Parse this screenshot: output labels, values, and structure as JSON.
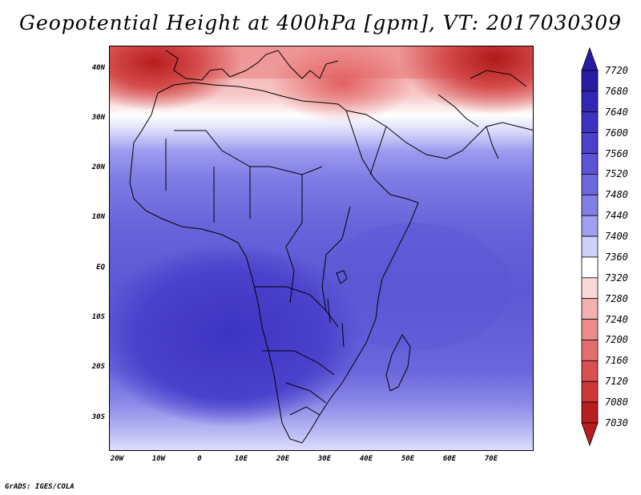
{
  "title": "Geopotential Height at 400hPa [gpm], VT: 2017030309",
  "footer": "GrADS: IGES/COLA",
  "lat_labels": [
    "40N",
    "30N",
    "20N",
    "10N",
    "EQ",
    "10S",
    "20S",
    "30S"
  ],
  "lon_labels": [
    "20W",
    "10W",
    "0",
    "10E",
    "20E",
    "30E",
    "40E",
    "50E",
    "60E",
    "70E"
  ],
  "colorbar": {
    "labels": [
      "7720",
      "7680",
      "7640",
      "7600",
      "7560",
      "7520",
      "7480",
      "7440",
      "7400",
      "7360",
      "7320",
      "7280",
      "7240",
      "7200",
      "7160",
      "7120",
      "7080",
      "7030"
    ],
    "colors_top_to_bottom": [
      "#2a1aa6",
      "#3326b4",
      "#3d33c2",
      "#4a42cc",
      "#5a55d6",
      "#6b68de",
      "#8080e6",
      "#a0a0f0",
      "#d0d0fa",
      "#ffffff",
      "#fbd8d8",
      "#f4b0b0",
      "#ec8c8c",
      "#e26e6e",
      "#d85050",
      "#cc3636",
      "#b81e1e"
    ]
  },
  "map": {
    "region": "Africa, Mediterranean and Middle East",
    "lon_range": [
      -22,
      80
    ],
    "lat_range": [
      -37,
      45
    ]
  }
}
